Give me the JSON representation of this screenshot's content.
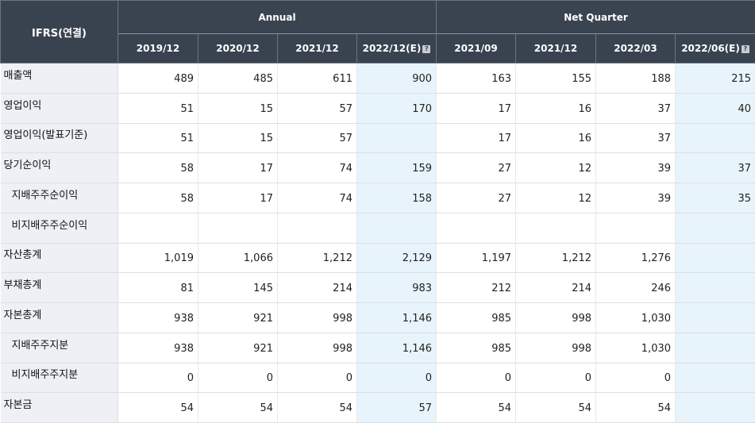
{
  "header": {
    "corner": "IFRS(연결)",
    "group_annual": "Annual",
    "group_quarter": "Net Quarter",
    "periods": [
      "2019/12",
      "2020/12",
      "2021/12",
      "2022/12(E)",
      "2021/09",
      "2021/12",
      "2022/03",
      "2022/06(E)"
    ]
  },
  "rows": [
    {
      "label": "매출액",
      "values": [
        "489",
        "485",
        "611",
        "900",
        "163",
        "155",
        "188",
        "215"
      ]
    },
    {
      "label": "영업이익",
      "values": [
        "51",
        "15",
        "57",
        "170",
        "17",
        "16",
        "37",
        "40"
      ]
    },
    {
      "label": "영업이익(발표기준)",
      "values": [
        "51",
        "15",
        "57",
        "",
        "17",
        "16",
        "37",
        ""
      ]
    },
    {
      "label": "당기순이익",
      "values": [
        "58",
        "17",
        "74",
        "159",
        "27",
        "12",
        "39",
        "37"
      ]
    },
    {
      "label": "지배주주순이익",
      "values": [
        "58",
        "17",
        "74",
        "158",
        "27",
        "12",
        "39",
        "35"
      ]
    },
    {
      "label": "비지배주주순이익",
      "values": [
        "",
        "",
        "",
        "",
        "",
        "",
        "",
        ""
      ]
    },
    {
      "label": "자산총계",
      "values": [
        "1,019",
        "1,066",
        "1,212",
        "2,129",
        "1,197",
        "1,212",
        "1,276",
        ""
      ]
    },
    {
      "label": "부채총계",
      "values": [
        "81",
        "145",
        "214",
        "983",
        "212",
        "214",
        "246",
        ""
      ]
    },
    {
      "label": "자본총계",
      "values": [
        "938",
        "921",
        "998",
        "1,146",
        "985",
        "998",
        "1,030",
        ""
      ]
    },
    {
      "label": "지배주주지분",
      "values": [
        "938",
        "921",
        "998",
        "1,146",
        "985",
        "998",
        "1,030",
        ""
      ]
    },
    {
      "label": "비지배주주지분",
      "values": [
        "0",
        "0",
        "0",
        "0",
        "0",
        "0",
        "0",
        ""
      ]
    },
    {
      "label": "자본금",
      "values": [
        "54",
        "54",
        "54",
        "57",
        "54",
        "54",
        "54",
        ""
      ]
    }
  ]
}
